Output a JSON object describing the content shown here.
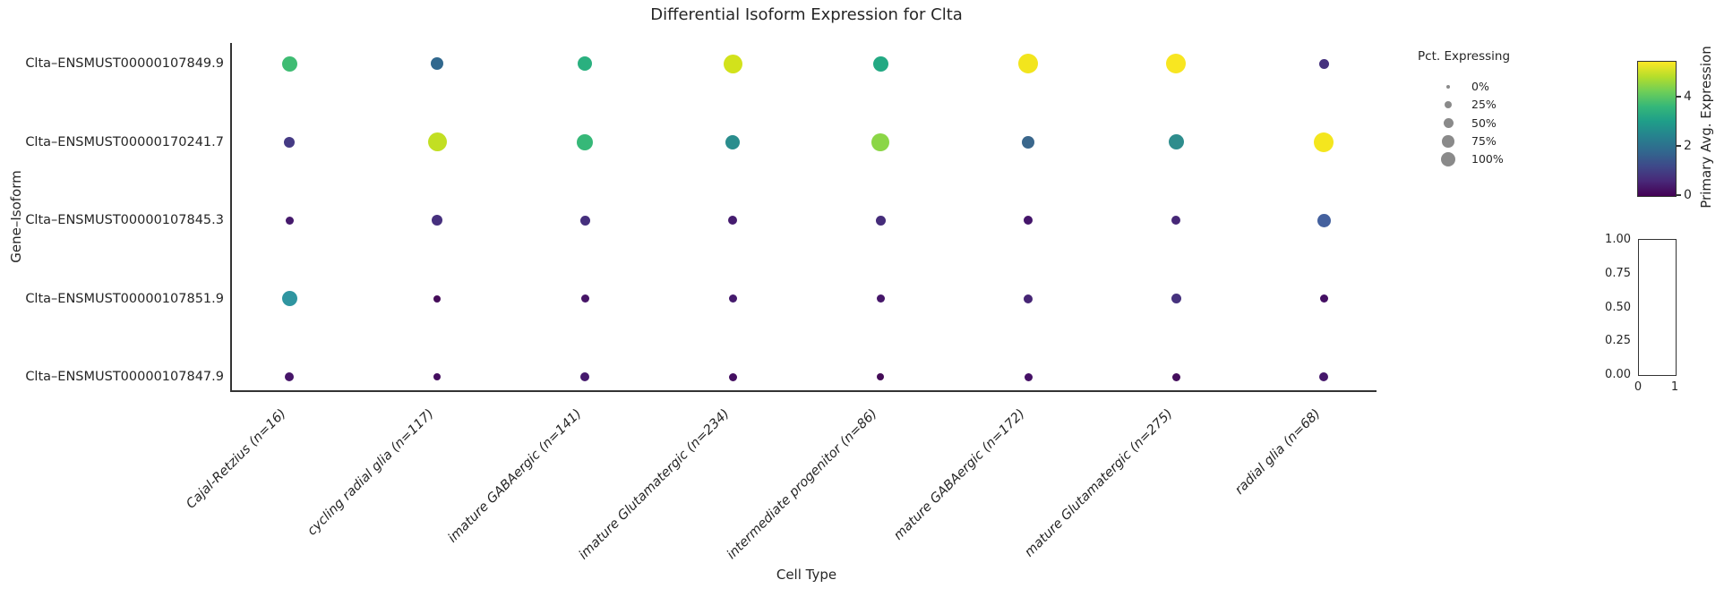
{
  "chart_data": {
    "type": "scatter",
    "variant": "dot-plot",
    "title": "Differential Isoform Expression for Clta",
    "xlabel": "Cell Type",
    "ylabel": "Gene–Isoform",
    "x_categories": [
      "Cajal-Retzius (n=16)",
      "cycling radial glia (n=117)",
      "imature GABAergic (n=141)",
      "imature Glutamatergic (n=234)",
      "intermediate progenitor (n=86)",
      "mature GABAergic (n=172)",
      "mature Glutamatergic (n=275)",
      "radial glia (n=68)"
    ],
    "y_categories": [
      "Clta–ENSMUST00000107849.9",
      "Clta–ENSMUST00000170241.7",
      "Clta–ENSMUST00000107845.3",
      "Clta–ENSMUST00000107851.9",
      "Clta–ENSMUST00000107847.9"
    ],
    "size_legend": {
      "title": "Pct. Expressing",
      "labels": [
        "0%",
        "25%",
        "50%",
        "75%",
        "100%"
      ],
      "values": [
        0,
        25,
        50,
        75,
        100
      ],
      "marker_color": "#8a8a8a"
    },
    "colorbar": {
      "title": "Primary Avg. Expression",
      "ticks": [
        0,
        2,
        4
      ],
      "vmin": 0,
      "vmax": 5.45,
      "colormap": "viridis",
      "colormap_stops": [
        "#440154",
        "#482878",
        "#3e4989",
        "#31688e",
        "#26828e",
        "#1f9e89",
        "#35b779",
        "#6ece58",
        "#b5de2b",
        "#fde725"
      ]
    },
    "empty_axes": {
      "y_ticks": [
        "1.00",
        "0.75",
        "0.50",
        "0.25",
        "0.00"
      ],
      "x_ticks": [
        "0",
        "1"
      ]
    },
    "cells": [
      [
        {
          "pct": 60,
          "expr": 3.7,
          "color": "#3fbc73",
          "d": 17
        },
        {
          "pct": 40,
          "expr": 2.1,
          "color": "#31688e",
          "d": 14
        },
        {
          "pct": 53,
          "expr": 3.4,
          "color": "#2ab07f",
          "d": 16
        },
        {
          "pct": 91,
          "expr": 4.9,
          "color": "#d2e21b",
          "d": 21
        },
        {
          "pct": 60,
          "expr": 3.3,
          "color": "#23a983",
          "d": 17
        },
        {
          "pct": 100,
          "expr": 5.3,
          "color": "#f2e51d",
          "d": 22
        },
        {
          "pct": 100,
          "expr": 5.4,
          "color": "#f8e621",
          "d": 22
        },
        {
          "pct": 25,
          "expr": 0.9,
          "color": "#46327e",
          "d": 11
        }
      ],
      [
        {
          "pct": 30,
          "expr": 1.1,
          "color": "#453a84",
          "d": 12
        },
        {
          "pct": 91,
          "expr": 4.7,
          "color": "#c2df23",
          "d": 21
        },
        {
          "pct": 67,
          "expr": 3.6,
          "color": "#36b878",
          "d": 18
        },
        {
          "pct": 53,
          "expr": 2.7,
          "color": "#2a8d8d",
          "d": 16
        },
        {
          "pct": 83,
          "expr": 4.2,
          "color": "#8bd646",
          "d": 20
        },
        {
          "pct": 40,
          "expr": 2.0,
          "color": "#3a678c",
          "d": 14
        },
        {
          "pct": 60,
          "expr": 2.7,
          "color": "#2e8d8d",
          "d": 17
        },
        {
          "pct": 100,
          "expr": 5.35,
          "color": "#f4e61e",
          "d": 22
        }
      ],
      [
        {
          "pct": 17,
          "expr": 0.45,
          "color": "#45196c",
          "d": 9
        },
        {
          "pct": 30,
          "expr": 0.85,
          "color": "#46307e",
          "d": 12
        },
        {
          "pct": 25,
          "expr": 0.8,
          "color": "#452f7d",
          "d": 11
        },
        {
          "pct": 21,
          "expr": 0.55,
          "color": "#451c6f",
          "d": 10
        },
        {
          "pct": 25,
          "expr": 0.75,
          "color": "#452c7a",
          "d": 11
        },
        {
          "pct": 21,
          "expr": 0.4,
          "color": "#44156a",
          "d": 10
        },
        {
          "pct": 21,
          "expr": 0.7,
          "color": "#462777",
          "d": 10
        },
        {
          "pct": 46,
          "expr": 1.8,
          "color": "#44619e",
          "d": 15
        }
      ],
      [
        {
          "pct": 60,
          "expr": 2.4,
          "color": "#2f95a0",
          "d": 17
        },
        {
          "pct": 13,
          "expr": 0.25,
          "color": "#450c59",
          "d": 8
        },
        {
          "pct": 17,
          "expr": 0.4,
          "color": "#461567",
          "d": 9
        },
        {
          "pct": 17,
          "expr": 0.5,
          "color": "#451a6d",
          "d": 9
        },
        {
          "pct": 17,
          "expr": 0.45,
          "color": "#451669",
          "d": 9
        },
        {
          "pct": 21,
          "expr": 0.65,
          "color": "#462575",
          "d": 10
        },
        {
          "pct": 25,
          "expr": 0.9,
          "color": "#46327e",
          "d": 11
        },
        {
          "pct": 17,
          "expr": 0.3,
          "color": "#440f63",
          "d": 9
        }
      ],
      [
        {
          "pct": 21,
          "expr": 0.45,
          "color": "#461569",
          "d": 10
        },
        {
          "pct": 13,
          "expr": 0.3,
          "color": "#440e5f",
          "d": 8
        },
        {
          "pct": 21,
          "expr": 0.5,
          "color": "#451a6d",
          "d": 10
        },
        {
          "pct": 17,
          "expr": 0.3,
          "color": "#440f61",
          "d": 9
        },
        {
          "pct": 13,
          "expr": 0.2,
          "color": "#440c57",
          "d": 8
        },
        {
          "pct": 17,
          "expr": 0.35,
          "color": "#451066",
          "d": 9
        },
        {
          "pct": 17,
          "expr": 0.25,
          "color": "#440e5c",
          "d": 9
        },
        {
          "pct": 21,
          "expr": 0.45,
          "color": "#45176b",
          "d": 10
        }
      ]
    ]
  }
}
